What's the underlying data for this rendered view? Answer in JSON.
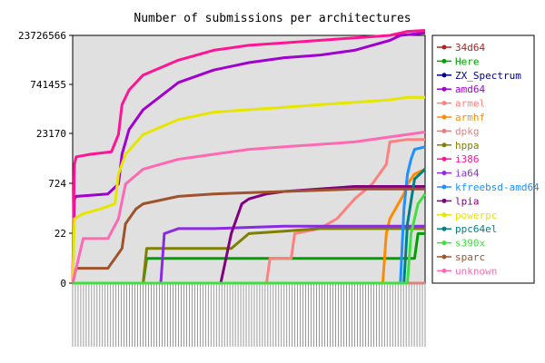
{
  "chart_data": {
    "type": "line",
    "title": "Number of submissions per architectures",
    "xlabel": "",
    "ylabel": "",
    "y_scale": "log",
    "y_ticks": [
      "0",
      "22",
      "724",
      "23170",
      "741455",
      "23726566"
    ],
    "ylim": [
      0,
      23726566
    ],
    "grid": false,
    "legend_position": "right",
    "plot_background": "#e0e0e0",
    "x_tick_labels": "dense, unreadable",
    "series": [
      {
        "name": "34d64",
        "color": "#b22222",
        "points": [
          [
            0,
            0.0
          ],
          [
            100,
            0.0
          ]
        ]
      },
      {
        "name": "Here",
        "color": "#00a000",
        "points": [
          [
            0,
            0.0
          ],
          [
            20,
            0.0
          ],
          [
            21,
            0.5
          ],
          [
            97,
            0.5
          ],
          [
            98,
            1.0
          ],
          [
            100,
            1.0
          ]
        ]
      },
      {
        "name": "ZX_Spectrum",
        "color": "#00008b",
        "points": [
          [
            0,
            0.0
          ],
          [
            100,
            0.0
          ]
        ]
      },
      {
        "name": "amd64",
        "color": "#a000d0",
        "points": [
          [
            0,
            0.0
          ],
          [
            0.5,
            1.7
          ],
          [
            1,
            1.75
          ],
          [
            10,
            1.8
          ],
          [
            13,
            2.0
          ],
          [
            14,
            2.6
          ],
          [
            16,
            3.1
          ],
          [
            20,
            3.5
          ],
          [
            30,
            4.05
          ],
          [
            40,
            4.3
          ],
          [
            50,
            4.45
          ],
          [
            60,
            4.55
          ],
          [
            70,
            4.6
          ],
          [
            80,
            4.7
          ],
          [
            85,
            4.8
          ],
          [
            90,
            4.9
          ],
          [
            93,
            5.0
          ],
          [
            100,
            5.05
          ]
        ]
      },
      {
        "name": "armel",
        "color": "#ff8080",
        "points": [
          [
            0,
            0.0
          ],
          [
            55,
            0.0
          ],
          [
            56,
            0.5
          ],
          [
            62,
            0.5
          ],
          [
            63,
            1.0
          ],
          [
            70,
            1.1
          ],
          [
            75,
            1.3
          ],
          [
            80,
            1.7
          ],
          [
            85,
            2.0
          ],
          [
            89,
            2.4
          ],
          [
            90,
            2.85
          ],
          [
            95,
            2.9
          ],
          [
            97,
            2.9
          ],
          [
            100,
            2.9
          ]
        ]
      },
      {
        "name": "armhf",
        "color": "#ff8c00",
        "points": [
          [
            0,
            0.0
          ],
          [
            88,
            0.0
          ],
          [
            89,
            1.0
          ],
          [
            90,
            1.3
          ],
          [
            94,
            1.8
          ],
          [
            95,
            2.0
          ],
          [
            97,
            2.2
          ],
          [
            100,
            2.3
          ]
        ]
      },
      {
        "name": "dpkg",
        "color": "#e08080",
        "points": [
          [
            0,
            0.0
          ],
          [
            100,
            0.0
          ]
        ]
      },
      {
        "name": "hppa",
        "color": "#808000",
        "points": [
          [
            0,
            0.0
          ],
          [
            20,
            0.0
          ],
          [
            21,
            0.7
          ],
          [
            25,
            0.7
          ],
          [
            45,
            0.7
          ],
          [
            50,
            1.0
          ],
          [
            60,
            1.05
          ],
          [
            70,
            1.1
          ],
          [
            100,
            1.1
          ]
        ]
      },
      {
        "name": "i386",
        "color": "#ff1493",
        "points": [
          [
            0,
            0.0
          ],
          [
            0.5,
            2.4
          ],
          [
            1,
            2.55
          ],
          [
            5,
            2.6
          ],
          [
            11,
            2.65
          ],
          [
            13,
            3.0
          ],
          [
            14,
            3.6
          ],
          [
            16,
            3.9
          ],
          [
            20,
            4.2
          ],
          [
            30,
            4.5
          ],
          [
            40,
            4.7
          ],
          [
            50,
            4.8
          ],
          [
            60,
            4.85
          ],
          [
            70,
            4.9
          ],
          [
            80,
            4.95
          ],
          [
            90,
            5.0
          ],
          [
            95,
            5.08
          ],
          [
            100,
            5.1
          ]
        ]
      },
      {
        "name": "ia64",
        "color": "#8a2be2",
        "points": [
          [
            0,
            0.0
          ],
          [
            25,
            0.0
          ],
          [
            26,
            1.0
          ],
          [
            30,
            1.1
          ],
          [
            40,
            1.1
          ],
          [
            60,
            1.15
          ],
          [
            80,
            1.15
          ],
          [
            100,
            1.15
          ]
        ]
      },
      {
        "name": "kfreebsd-amd64",
        "color": "#1e90ff",
        "points": [
          [
            0,
            0.0
          ],
          [
            93,
            0.0
          ],
          [
            94,
            1.5
          ],
          [
            95,
            2.2
          ],
          [
            96,
            2.5
          ],
          [
            97,
            2.7
          ],
          [
            100,
            2.75
          ]
        ]
      },
      {
        "name": "lpia",
        "color": "#800080",
        "points": [
          [
            0,
            0.0
          ],
          [
            42,
            0.0
          ],
          [
            45,
            1.0
          ],
          [
            48,
            1.6
          ],
          [
            50,
            1.7
          ],
          [
            55,
            1.8
          ],
          [
            60,
            1.85
          ],
          [
            70,
            1.9
          ],
          [
            80,
            1.95
          ],
          [
            100,
            1.95
          ]
        ]
      },
      {
        "name": "powerpc",
        "color": "#e6e600",
        "points": [
          [
            0,
            0.0
          ],
          [
            0.5,
            1.3
          ],
          [
            3,
            1.4
          ],
          [
            8,
            1.5
          ],
          [
            12,
            1.6
          ],
          [
            13,
            2.2
          ],
          [
            15,
            2.6
          ],
          [
            20,
            3.0
          ],
          [
            30,
            3.3
          ],
          [
            40,
            3.45
          ],
          [
            50,
            3.5
          ],
          [
            60,
            3.55
          ],
          [
            70,
            3.6
          ],
          [
            80,
            3.65
          ],
          [
            90,
            3.7
          ],
          [
            95,
            3.75
          ],
          [
            100,
            3.75
          ]
        ]
      },
      {
        "name": "ppc64el",
        "color": "#008080",
        "points": [
          [
            0,
            0.0
          ],
          [
            94,
            0.0
          ],
          [
            95,
            1.2
          ],
          [
            97,
            2.1
          ],
          [
            100,
            2.3
          ]
        ]
      },
      {
        "name": "s390x",
        "color": "#40e040",
        "points": [
          [
            0,
            0.0
          ],
          [
            95,
            0.0
          ],
          [
            96,
            1.0
          ],
          [
            98,
            1.6
          ],
          [
            100,
            1.8
          ]
        ]
      },
      {
        "name": "sparc",
        "color": "#a0522d",
        "points": [
          [
            0,
            0.0
          ],
          [
            1,
            0.3
          ],
          [
            10,
            0.3
          ],
          [
            14,
            0.7
          ],
          [
            15,
            1.2
          ],
          [
            18,
            1.5
          ],
          [
            20,
            1.6
          ],
          [
            30,
            1.75
          ],
          [
            40,
            1.8
          ],
          [
            60,
            1.85
          ],
          [
            80,
            1.9
          ],
          [
            100,
            1.9
          ]
        ]
      },
      {
        "name": "unknown",
        "color": "#ff69b4",
        "points": [
          [
            0,
            0.0
          ],
          [
            3,
            0.9
          ],
          [
            10,
            0.9
          ],
          [
            13,
            1.3
          ],
          [
            15,
            2.0
          ],
          [
            20,
            2.3
          ],
          [
            30,
            2.5
          ],
          [
            40,
            2.6
          ],
          [
            50,
            2.7
          ],
          [
            60,
            2.75
          ],
          [
            70,
            2.8
          ],
          [
            80,
            2.85
          ],
          [
            90,
            2.95
          ],
          [
            100,
            3.05
          ]
        ]
      }
    ]
  }
}
